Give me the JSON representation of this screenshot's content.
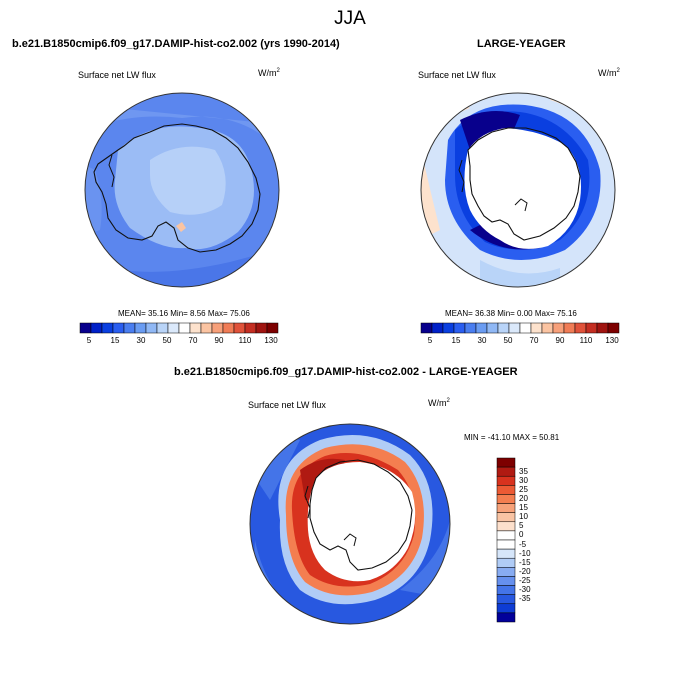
{
  "page": {
    "title": "JJA"
  },
  "panels": [
    {
      "header": "b.e21.B1850cmip6.f09_g17.DAMIP-hist-co2.002 (yrs 1990-2014)",
      "variable": "Surface net LW flux",
      "units_base": "W/m",
      "units_exp": "2",
      "stats": "MEAN=  35.16  Min=   8.56  Max=  75.06",
      "colorbar": {
        "colors": [
          "#08008c",
          "#0020c8",
          "#0a3fe0",
          "#2a5ef0",
          "#4a7ef0",
          "#6a9cf2",
          "#90b8f5",
          "#b9d4f8",
          "#dbe9fb",
          "#ffffff",
          "#fde2cd",
          "#fbc4a2",
          "#f7a07a",
          "#f07c56",
          "#e0523a",
          "#c42e22",
          "#a01410",
          "#7d0000"
        ],
        "labels": [
          "5",
          "15",
          "30",
          "50",
          "70",
          "90",
          "110",
          "130"
        ]
      }
    },
    {
      "header": "LARGE-YEAGER",
      "variable": "Surface net LW flux",
      "units_base": "W/m",
      "units_exp": "2",
      "stats": "MEAN=  36.38  Min=   0.00  Max=  75.16",
      "colorbar": {
        "colors": [
          "#08008c",
          "#0020c8",
          "#0a3fe0",
          "#2a5ef0",
          "#4a7ef0",
          "#6a9cf2",
          "#90b8f5",
          "#b9d4f8",
          "#dbe9fb",
          "#ffffff",
          "#fde2cd",
          "#fbc4a2",
          "#f7a07a",
          "#f07c56",
          "#e0523a",
          "#c42e22",
          "#a01410",
          "#7d0000"
        ],
        "labels": [
          "5",
          "15",
          "30",
          "50",
          "70",
          "90",
          "110",
          "130"
        ]
      }
    },
    {
      "header": "b.e21.B1850cmip6.f09_g17.DAMIP-hist-co2.002 - LARGE-YEAGER",
      "variable": "Surface net LW flux",
      "units_base": "W/m",
      "units_exp": "2",
      "stats": "MIN = -41.10 MAX =  50.81",
      "colorbar": {
        "colors": [
          "#7d0000",
          "#b01a12",
          "#d8321e",
          "#ec5a34",
          "#f47e50",
          "#f7a27a",
          "#f9c4a4",
          "#fde0cc",
          "#ffffff",
          "#ffffff",
          "#d6e6fa",
          "#b0ccf6",
          "#88acf2",
          "#6690ee",
          "#4474e8",
          "#2858e0",
          "#0e3cd4",
          "#02009a"
        ],
        "labels": [
          "35",
          "30",
          "25",
          "20",
          "15",
          "10",
          "5",
          "0",
          "-5",
          "-10",
          "-15",
          "-20",
          "-25",
          "-30",
          "-35"
        ]
      }
    }
  ]
}
